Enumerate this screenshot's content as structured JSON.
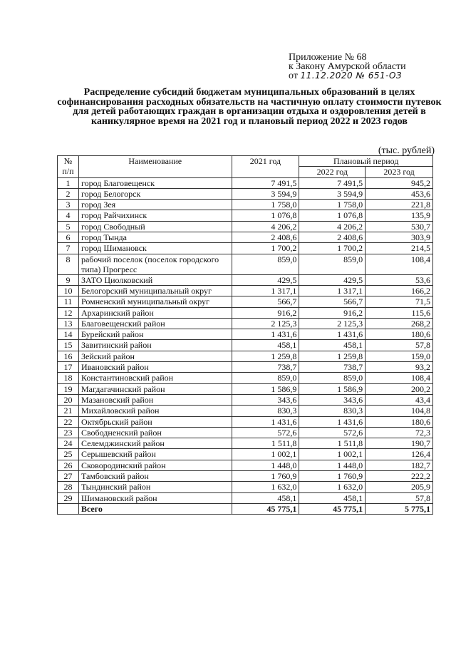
{
  "appendix": {
    "line1": "Приложение № 68",
    "line2": "к Закону Амурской области",
    "line3_prefix": "от",
    "line3_handwritten": "11.12.2020 № 651-ОЗ"
  },
  "title": "Распределение субсидий бюджетам муниципальных образований в целях софинансирования расходных обязательств на частичную оплату стоимости путевок для детей работающих граждан в организации отдыха и оздоровления детей в каникулярное время на 2021 год и плановый период 2022 и 2023 годов",
  "units": "(тыс. рублей)",
  "table": {
    "headers": {
      "no": "№ п/п",
      "name": "Наименование",
      "y2021": "2021 год",
      "planned": "Плановый период",
      "y2022": "2022 год",
      "y2023": "2023 год"
    },
    "rows": [
      [
        "1",
        "город Благовещенск",
        "7 491,5",
        "7 491,5",
        "945,2"
      ],
      [
        "2",
        "город Белогорск",
        "3 594,9",
        "3 594,9",
        "453,6"
      ],
      [
        "3",
        "город Зея",
        "1 758,0",
        "1 758,0",
        "221,8"
      ],
      [
        "4",
        "город Райчихинск",
        "1 076,8",
        "1 076,8",
        "135,9"
      ],
      [
        "5",
        "город Свободный",
        "4 206,2",
        "4 206,2",
        "530,7"
      ],
      [
        "6",
        "город Тында",
        "2 408,6",
        "2 408,6",
        "303,9"
      ],
      [
        "7",
        "город Шимановск",
        "1 700,2",
        "1 700,2",
        "214,5"
      ],
      [
        "8",
        "рабочий поселок (поселок городского типа) Прогресс",
        "859,0",
        "859,0",
        "108,4"
      ],
      [
        "9",
        "ЗАТО Циолковский",
        "429,5",
        "429,5",
        "53,6"
      ],
      [
        "10",
        "Белогорский муниципальный округ",
        "1 317,1",
        "1 317,1",
        "166,2"
      ],
      [
        "11",
        "Ромненский муниципальный округ",
        "566,7",
        "566,7",
        "71,5"
      ],
      [
        "12",
        "Архаринский район",
        "916,2",
        "916,2",
        "115,6"
      ],
      [
        "13",
        "Благовещенский район",
        "2 125,3",
        "2 125,3",
        "268,2"
      ],
      [
        "14",
        "Бурейский район",
        "1 431,6",
        "1 431,6",
        "180,6"
      ],
      [
        "15",
        "Завитинский район",
        "458,1",
        "458,1",
        "57,8"
      ],
      [
        "16",
        "Зейский район",
        "1 259,8",
        "1 259,8",
        "159,0"
      ],
      [
        "17",
        "Ивановский район",
        "738,7",
        "738,7",
        "93,2"
      ],
      [
        "18",
        "Константиновский район",
        "859,0",
        "859,0",
        "108,4"
      ],
      [
        "19",
        "Магдагачинский район",
        "1 586,9",
        "1 586,9",
        "200,2"
      ],
      [
        "20",
        "Мазановский район",
        "343,6",
        "343,6",
        "43,4"
      ],
      [
        "21",
        "Михайловский район",
        "830,3",
        "830,3",
        "104,8"
      ],
      [
        "22",
        "Октябрьский район",
        "1 431,6",
        "1 431,6",
        "180,6"
      ],
      [
        "23",
        "Свободненский район",
        "572,6",
        "572,6",
        "72,3"
      ],
      [
        "24",
        "Селемджинский район",
        "1 511,8",
        "1 511,8",
        "190,7"
      ],
      [
        "25",
        "Серышевский район",
        "1 002,1",
        "1 002,1",
        "126,4"
      ],
      [
        "26",
        "Сковородинский район",
        "1 448,0",
        "1 448,0",
        "182,7"
      ],
      [
        "27",
        "Тамбовский район",
        "1 760,9",
        "1 760,9",
        "222,2"
      ],
      [
        "28",
        "Тындинский район",
        "1 632,0",
        "1 632,0",
        "205,9"
      ],
      [
        "29",
        "Шимановский район",
        "458,1",
        "458,1",
        "57,8"
      ]
    ],
    "total": [
      "",
      "Всего",
      "45 775,1",
      "45 775,1",
      "5 775,1"
    ]
  }
}
